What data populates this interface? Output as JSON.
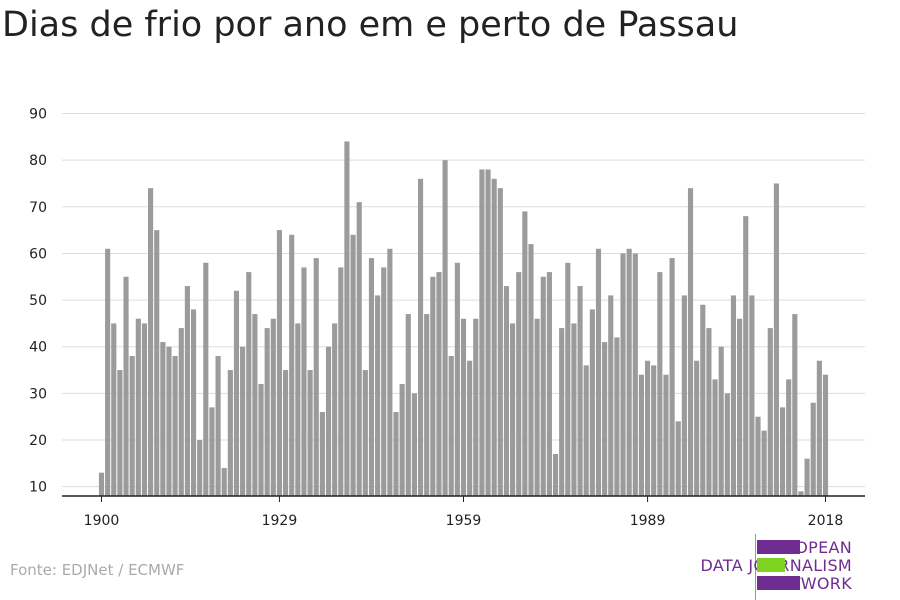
{
  "title": "Dias de frio por ano em e perto de Passau",
  "source": "Fonte: EDJNet / ECMWF",
  "logo": {
    "line1": "EUROPEAN",
    "line2": "DATA JOURNALISM",
    "line3": "NETWORK"
  },
  "colors": {
    "bar": "#9b9b9b",
    "grid": "#dddddd",
    "axis": "#222222",
    "logo_purple": "#6f2c91",
    "logo_green": "#7ed321"
  },
  "chart_data": {
    "type": "bar",
    "title": "Dias de frio por ano em e perto de Passau",
    "xlabel": "",
    "ylabel": "",
    "ylim": [
      8,
      90
    ],
    "yticks": [
      10,
      20,
      30,
      40,
      50,
      60,
      70,
      80,
      90
    ],
    "xticks": [
      1900,
      1929,
      1959,
      1989,
      2018
    ],
    "grid": true,
    "legend": "none",
    "x": [
      1900,
      1901,
      1902,
      1903,
      1904,
      1905,
      1906,
      1907,
      1908,
      1909,
      1910,
      1911,
      1912,
      1913,
      1914,
      1915,
      1916,
      1917,
      1918,
      1919,
      1920,
      1921,
      1922,
      1923,
      1924,
      1925,
      1926,
      1927,
      1928,
      1929,
      1930,
      1931,
      1932,
      1933,
      1934,
      1935,
      1936,
      1937,
      1938,
      1939,
      1940,
      1941,
      1942,
      1943,
      1944,
      1945,
      1946,
      1947,
      1948,
      1949,
      1950,
      1951,
      1952,
      1953,
      1954,
      1955,
      1956,
      1957,
      1958,
      1959,
      1960,
      1961,
      1962,
      1963,
      1964,
      1965,
      1966,
      1967,
      1968,
      1969,
      1970,
      1971,
      1972,
      1973,
      1974,
      1975,
      1976,
      1977,
      1978,
      1979,
      1980,
      1981,
      1982,
      1983,
      1984,
      1985,
      1986,
      1987,
      1988,
      1989,
      1990,
      1991,
      1992,
      1993,
      1994,
      1995,
      1996,
      1997,
      1998,
      1999,
      2000,
      2001,
      2002,
      2003,
      2004,
      2005,
      2006,
      2007,
      2008,
      2009,
      2010,
      2011,
      2012,
      2013,
      2014,
      2015,
      2016,
      2017,
      2018
    ],
    "values": [
      13,
      61,
      45,
      35,
      55,
      38,
      46,
      45,
      74,
      65,
      41,
      40,
      38,
      44,
      53,
      48,
      20,
      58,
      27,
      38,
      14,
      35,
      52,
      40,
      56,
      47,
      32,
      44,
      46,
      65,
      35,
      64,
      45,
      57,
      35,
      59,
      26,
      40,
      45,
      57,
      84,
      64,
      71,
      35,
      59,
      51,
      57,
      61,
      26,
      32,
      47,
      30,
      76,
      47,
      55,
      56,
      80,
      38,
      58,
      46,
      37,
      46,
      78,
      78,
      76,
      74,
      53,
      45,
      56,
      69,
      62,
      46,
      55,
      56,
      17,
      44,
      58,
      45,
      53,
      36,
      48,
      61,
      41,
      51,
      42,
      60,
      61,
      60,
      34,
      37,
      36,
      56,
      34,
      59,
      24,
      51,
      74,
      37,
      49,
      44,
      33,
      40,
      30,
      51,
      46,
      68,
      51,
      25,
      22,
      44,
      75,
      27,
      33,
      47,
      9,
      16,
      28,
      37,
      34
    ]
  }
}
